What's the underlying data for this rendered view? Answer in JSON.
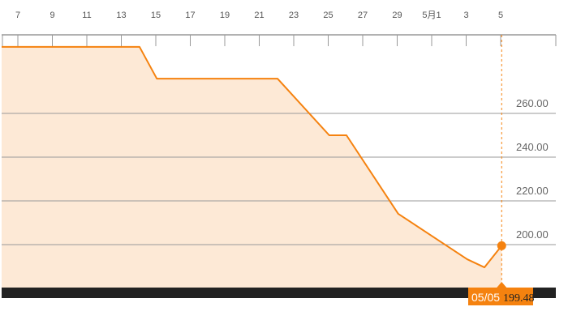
{
  "chart_data": {
    "type": "area",
    "title": "",
    "xlabel": "",
    "ylabel": "",
    "x_tick_labels": [
      "7",
      "9",
      "11",
      "13",
      "15",
      "17",
      "19",
      "21",
      "23",
      "25",
      "27",
      "29",
      "5月1",
      "3",
      "5"
    ],
    "y_tick_labels": [
      "200.00",
      "220.00",
      "240.00",
      "260.00"
    ],
    "ylim": [
      180.4,
      300
    ],
    "xlim": [
      "04/06",
      "05/08"
    ],
    "grid": true,
    "points": [
      {
        "x": "04/06",
        "y": 290.4
      },
      {
        "x": "04/14",
        "y": 290.4
      },
      {
        "x": "04/15",
        "y": 275.9
      },
      {
        "x": "04/22",
        "y": 275.9
      },
      {
        "x": "04/25",
        "y": 250.0
      },
      {
        "x": "04/26",
        "y": 250.0
      },
      {
        "x": "04/29",
        "y": 214.1
      },
      {
        "x": "05/03",
        "y": 193.3
      },
      {
        "x": "05/04",
        "y": 189.6
      },
      {
        "x": "05/05",
        "y": 199.48
      }
    ],
    "highlight": {
      "date_label": "05/05",
      "value_label": "199.48"
    },
    "colors": {
      "line": "#f5820f",
      "fill": "#fde9d6",
      "marker": "#f5820f",
      "footer": "#222222"
    }
  }
}
